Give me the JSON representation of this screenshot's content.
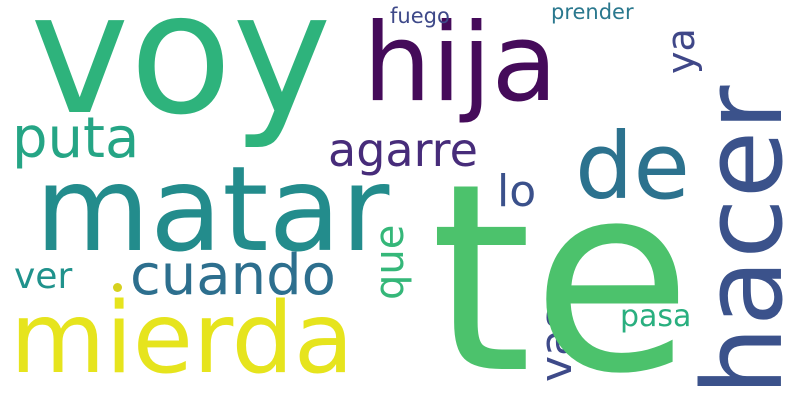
{
  "words": {
    "voy": {
      "text": "voy",
      "color": "#2eb37c"
    },
    "hija": {
      "text": "hija",
      "color": "#450b5a"
    },
    "te": {
      "text": "te",
      "color": "#4cc26c"
    },
    "matar": {
      "text": "matar",
      "color": "#238c8c"
    },
    "mierda": {
      "text": "mierda",
      "color": "#e6e41d"
    },
    "hacer": {
      "text": "hacer",
      "color": "#3b528b"
    },
    "de": {
      "text": "de",
      "color": "#2c728e"
    },
    "puta": {
      "text": "puta",
      "color": "#25a585"
    },
    "agarre": {
      "text": "agarre",
      "color": "#472c7a"
    },
    "cuando": {
      "text": "cuando",
      "color": "#2d6f8e"
    },
    "lo": {
      "text": "lo",
      "color": "#3b518b"
    },
    "vas": {
      "text": "vas",
      "color": "#3e4a89"
    },
    "que": {
      "text": "que",
      "color": "#35b779"
    },
    "ya": {
      "text": "ya",
      "color": "#3f4788"
    },
    "ver": {
      "text": "ver",
      "color": "#20928c"
    },
    "pasa": {
      "text": "pasa",
      "color": "#29af7f"
    },
    "fuego": {
      "text": "fuego",
      "color": "#3e4989"
    },
    "prender": {
      "text": "prender",
      "color": "#2a788e"
    }
  },
  "dot_color": "#d6d11e"
}
